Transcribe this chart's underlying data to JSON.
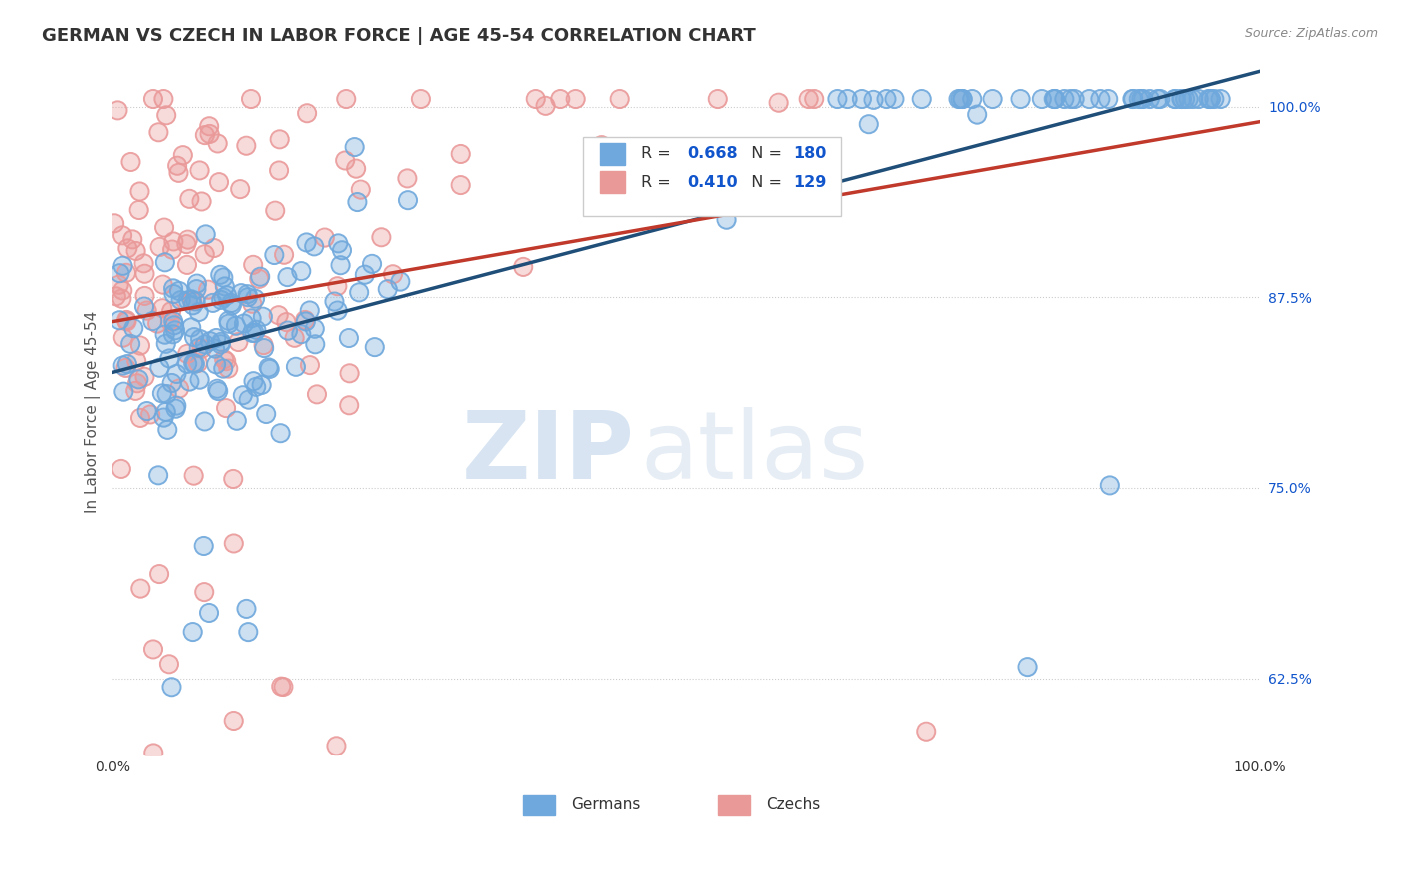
{
  "title": "GERMAN VS CZECH IN LABOR FORCE | AGE 45-54 CORRELATION CHART",
  "source": "Source: ZipAtlas.com",
  "ylabel": "In Labor Force | Age 45-54",
  "y_tick_labels_right": [
    "62.5%",
    "75.0%",
    "87.5%",
    "100.0%"
  ],
  "y_tick_vals_right": [
    0.625,
    0.75,
    0.875,
    1.0
  ],
  "german_R": 0.668,
  "german_N": 180,
  "czech_R": 0.41,
  "czech_N": 129,
  "german_color": "#6fa8dc",
  "czech_color": "#ea9999",
  "german_line_color": "#1f4e79",
  "czech_line_color": "#c0392b",
  "background_color": "#ffffff",
  "watermark_zip": "ZIP",
  "watermark_atlas": "atlas",
  "watermark_color": "#c8d8e8",
  "title_fontsize": 13,
  "axis_label_fontsize": 11,
  "tick_fontsize": 10,
  "r_value_color": "#1155cc"
}
